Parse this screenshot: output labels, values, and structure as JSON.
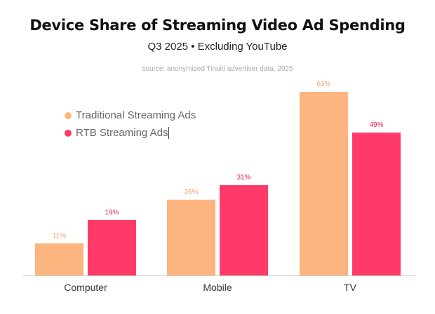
{
  "chart_data": {
    "type": "bar",
    "title": "Device Share of Streaming Video Ad Spending",
    "subtitle": "Q3 2025 • Excluding YouTube",
    "source": "source: anonymized Tinuiti advertiser data, 2025",
    "categories": [
      "Computer",
      "Mobile",
      "TV"
    ],
    "series": [
      {
        "name": "Traditional Streaming Ads",
        "values": [
          11,
          26,
          63
        ],
        "labels": [
          "11%",
          "26%",
          "63%"
        ],
        "color": "#fdb57f",
        "label_color": "#f0a070"
      },
      {
        "name": "RTB Streaming Ads",
        "values": [
          19,
          31,
          49
        ],
        "labels": [
          "19%",
          "31%",
          "49%"
        ],
        "color": "#ff3a68",
        "label_color": "#e8204f"
      }
    ],
    "ylim": [
      0,
      63
    ],
    "xlabel": "",
    "ylabel": "",
    "grid": false,
    "legend_position": "top-left"
  },
  "colors": {
    "axis": "#cccccc",
    "tick_label": "#333333"
  }
}
